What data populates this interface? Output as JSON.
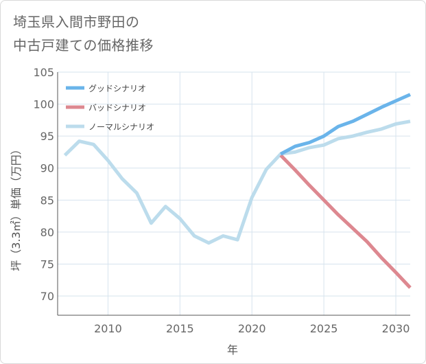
{
  "chart_data": {
    "type": "line",
    "title_lines": [
      "埼玉県入間市野田の",
      "中古戸建ての価格推移"
    ],
    "xlabel": "年",
    "ylabel": "坪（3.3㎡）単価（万円）",
    "xlim": [
      2006.5,
      2031
    ],
    "ylim": [
      67,
      105
    ],
    "x_ticks": [
      2010,
      2015,
      2020,
      2025,
      2030
    ],
    "y_ticks": [
      70,
      75,
      80,
      85,
      90,
      95,
      100,
      105
    ],
    "grid": true,
    "legend_position": "top-left",
    "series": [
      {
        "name": "グッドシナリオ",
        "color": "#6ab4ea",
        "x": [
          2022,
          2023,
          2024,
          2025,
          2026,
          2027,
          2028,
          2029,
          2030,
          2031
        ],
        "values": [
          92.2,
          93.4,
          94.0,
          95.0,
          96.5,
          97.3,
          98.4,
          99.5,
          100.5,
          101.5
        ]
      },
      {
        "name": "バッドシナリオ",
        "color": "#dd8890",
        "x": [
          2022,
          2023,
          2024,
          2025,
          2026,
          2027,
          2028,
          2029,
          2030,
          2031
        ],
        "values": [
          92.0,
          89.7,
          87.3,
          85.0,
          82.7,
          80.6,
          78.5,
          76.0,
          73.7,
          71.3
        ]
      },
      {
        "name": "ノーマルシナリオ",
        "color": "#bcdcec",
        "x": [
          2007,
          2008,
          2009,
          2010,
          2011,
          2012,
          2013,
          2014,
          2015,
          2016,
          2017,
          2018,
          2019,
          2020,
          2021,
          2022,
          2023,
          2024,
          2025,
          2026,
          2027,
          2028,
          2029,
          2030,
          2031
        ],
        "values": [
          92.0,
          94.2,
          93.7,
          91.2,
          88.3,
          86.1,
          81.4,
          84.0,
          82.1,
          79.4,
          78.3,
          79.4,
          78.8,
          85.4,
          89.8,
          92.2,
          92.5,
          93.2,
          93.6,
          94.6,
          95.0,
          95.6,
          96.1,
          96.9,
          97.3
        ]
      }
    ]
  }
}
